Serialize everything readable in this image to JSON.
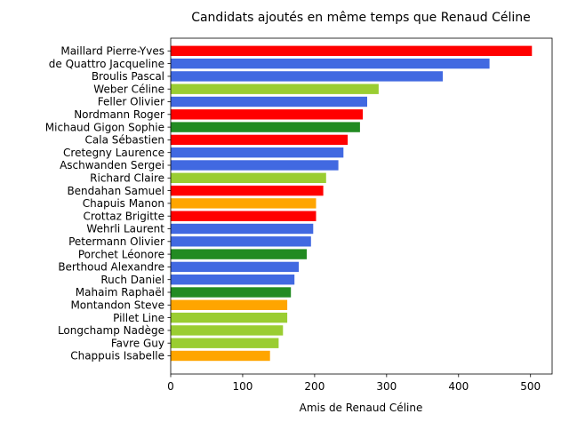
{
  "chart_data": {
    "type": "bar",
    "orientation": "horizontal",
    "title": "Candidats ajoutés en même temps que Renaud Céline",
    "xlabel": "Amis de Renaud Céline",
    "ylabel": "",
    "xlim": [
      0,
      530
    ],
    "xticks": [
      0,
      100,
      200,
      300,
      400,
      500
    ],
    "grid": false,
    "categories": [
      "Maillard Pierre-Yves",
      "de Quattro Jacqueline",
      "Broulis Pascal",
      "Weber Céline",
      "Feller Olivier",
      "Nordmann Roger",
      "Michaud Gigon Sophie",
      "Cala Sébastien",
      "Cretegny Laurence",
      "Aschwanden Sergei",
      "Richard Claire",
      "Bendahan Samuel",
      "Chapuis Manon",
      "Crottaz Brigitte",
      "Wehrli Laurent",
      "Petermann Olivier",
      "Porchet Léonore",
      "Berthoud Alexandre",
      "Ruch Daniel",
      "Mahaim Raphaël",
      "Montandon Steve",
      "Pillet Line",
      "Longchamp Nadège",
      "Favre Guy",
      "Chappuis Isabelle"
    ],
    "values": [
      502,
      443,
      378,
      289,
      273,
      267,
      263,
      246,
      240,
      233,
      216,
      212,
      202,
      202,
      198,
      195,
      189,
      178,
      172,
      167,
      162,
      162,
      156,
      150,
      138
    ],
    "colors": [
      "#ff0000",
      "#4169e1",
      "#4169e1",
      "#9acd32",
      "#4169e1",
      "#ff0000",
      "#228b22",
      "#ff0000",
      "#4169e1",
      "#4169e1",
      "#9acd32",
      "#ff0000",
      "#ffa500",
      "#ff0000",
      "#4169e1",
      "#4169e1",
      "#228b22",
      "#4169e1",
      "#4169e1",
      "#228b22",
      "#ffa500",
      "#9acd32",
      "#9acd32",
      "#9acd32",
      "#ffa500"
    ]
  }
}
